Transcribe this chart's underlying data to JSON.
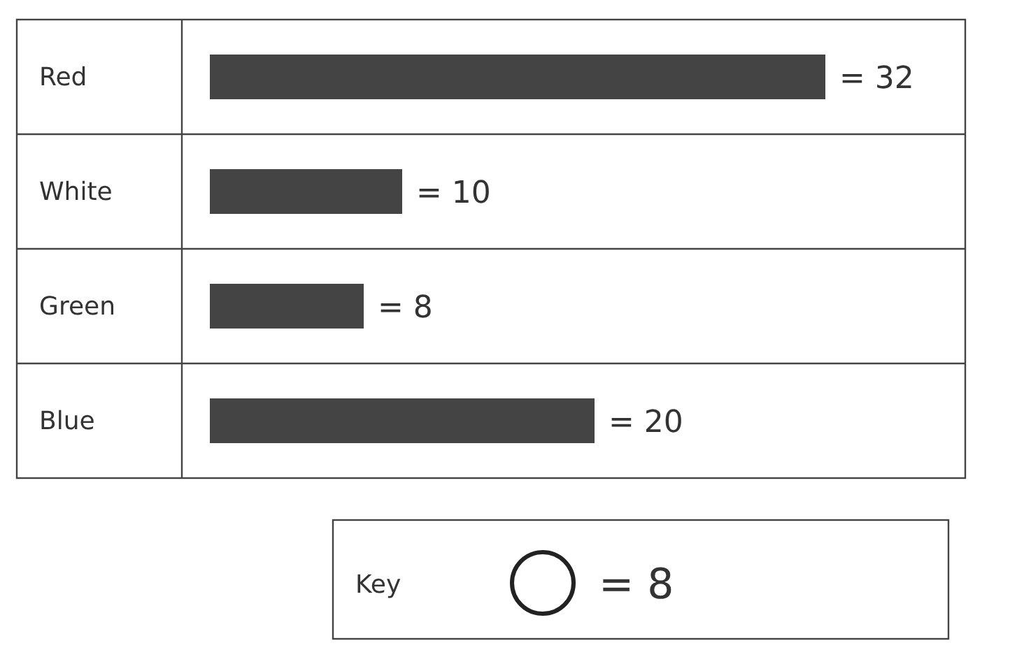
{
  "chart_data": {
    "type": "bar",
    "orientation": "horizontal",
    "categories": [
      "Red",
      "White",
      "Green",
      "Blue"
    ],
    "values": [
      32,
      10,
      8,
      20
    ],
    "color": "#444444",
    "value_labels": [
      "= 32",
      "= 10",
      "= 8",
      "= 20"
    ],
    "annotations": [
      "Key",
      "= 8"
    ]
  }
}
